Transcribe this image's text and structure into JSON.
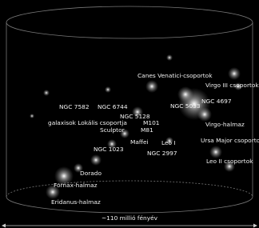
{
  "labels": [
    "Virgo III csoportok",
    "Canes Venatici-csoportok",
    "NGC 4697",
    "NGC 5033",
    "NGC 7582",
    "NGC 6744",
    "NGC 5128",
    "galaxisok Lokális csoportja",
    "M101",
    "Virgo-halmaz",
    "Sculptor",
    "M81",
    "Maffei",
    "Leo I",
    "Ursa Major csoportok",
    "NGC 1023",
    "NGC 2997",
    "Dorado",
    "Leo II csoportok",
    "Fornax-halmaz",
    "Eridanus-halmaz"
  ],
  "scale": "~110 millió fényév"
}
